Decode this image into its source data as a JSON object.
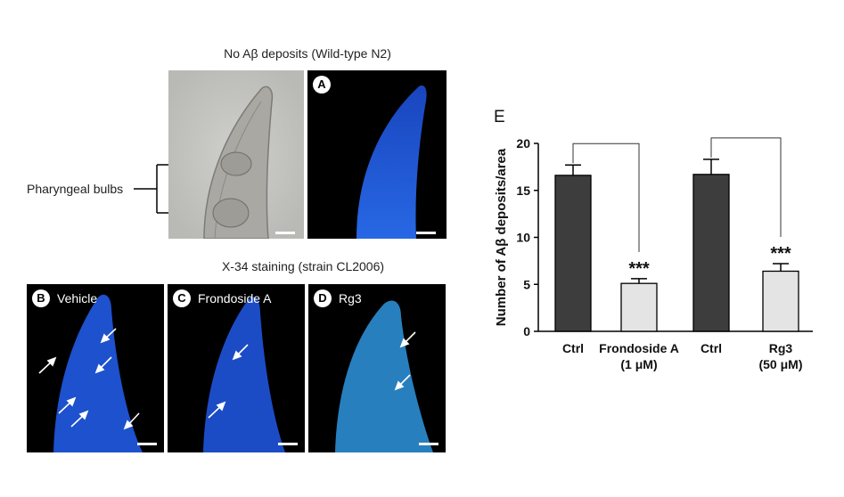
{
  "figure": {
    "top_heading": "No Aβ deposits (Wild-type N2)",
    "mid_heading": "X-34 staining (strain CL2006)",
    "pharyngeal_label": "Pharyngeal bulbs",
    "panels": {
      "a": {
        "letter": "A",
        "label": ""
      },
      "b": {
        "letter": "B",
        "label": "Vehicle"
      },
      "c": {
        "letter": "C",
        "label": "Frondoside A"
      },
      "d": {
        "letter": "D",
        "label": "Rg3"
      }
    }
  },
  "chart_data": {
    "type": "bar",
    "panel_letter": "E",
    "ylabel": "Number of Aβ deposits/area",
    "ylim": [
      0,
      20
    ],
    "yticks": [
      0,
      5,
      10,
      15,
      20
    ],
    "categories": [
      {
        "line1": "Ctrl",
        "line2": ""
      },
      {
        "line1": "Frondoside A",
        "line2": "(1 μM)"
      },
      {
        "line1": "Ctrl",
        "line2": ""
      },
      {
        "line1": "Rg3",
        "line2": "(50 μM)"
      }
    ],
    "values": [
      16.6,
      5.1,
      16.7,
      6.4
    ],
    "errors": [
      1.1,
      0.5,
      1.6,
      0.8
    ],
    "significance": [
      "",
      "***",
      "",
      "***"
    ],
    "bar_colors": [
      "#3d3d3d",
      "#e4e4e4",
      "#3d3d3d",
      "#e4e4e4"
    ],
    "comparisons": [
      [
        0,
        1
      ],
      [
        2,
        3
      ]
    ],
    "grid": false
  }
}
